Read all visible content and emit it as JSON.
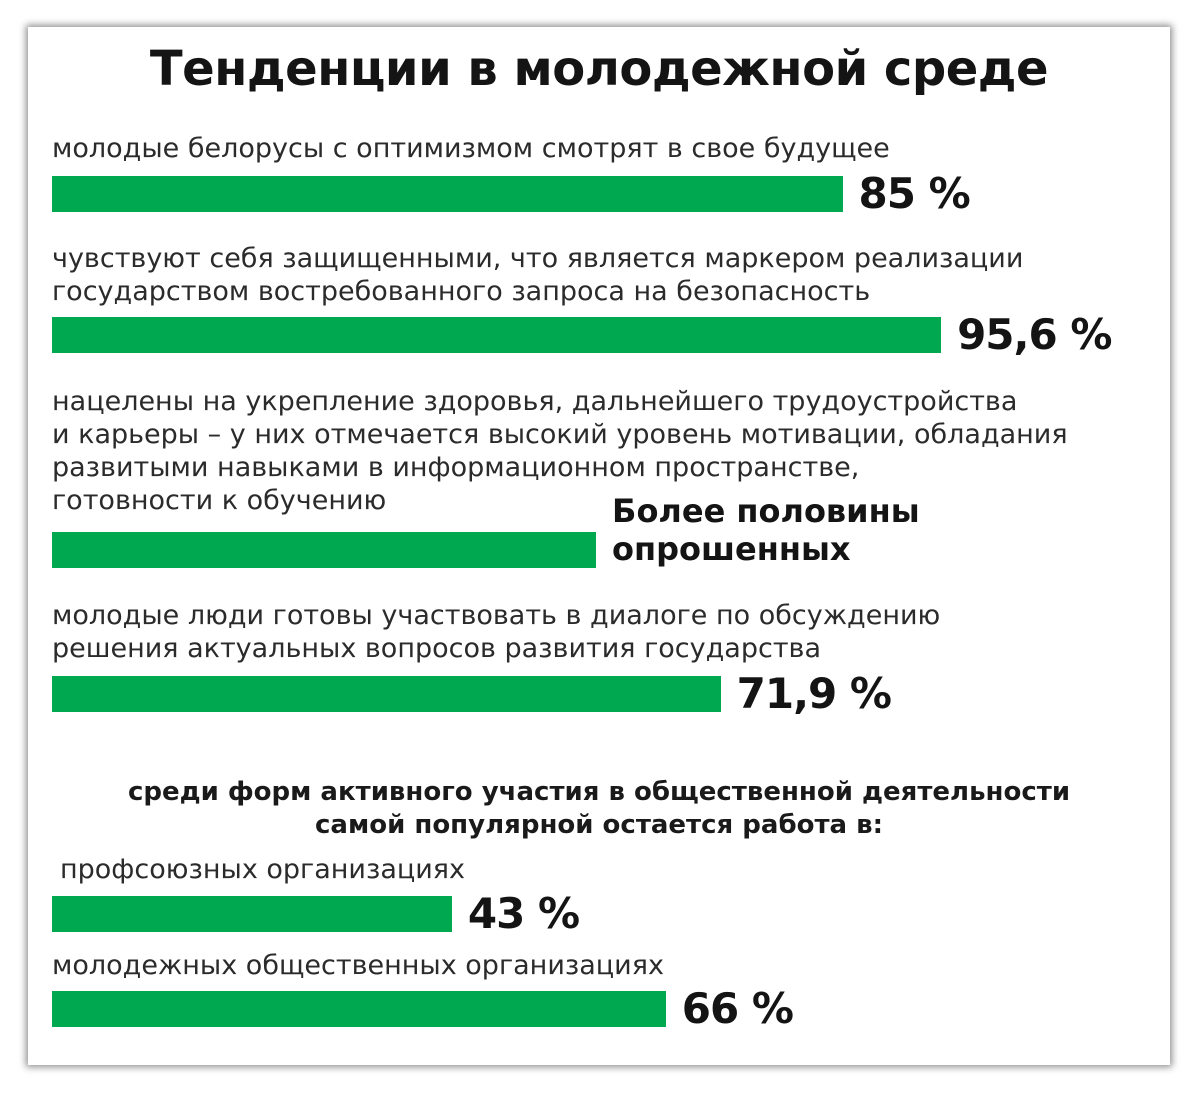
{
  "chart_data": {
    "type": "bar",
    "title": "Тенденции в молодежной среде",
    "subheading": "среди форм активного участия в общественной деятельности\nсамой популярной остается работа в:",
    "bar_color": "#00a850",
    "xlim": [
      0,
      100
    ],
    "items": [
      {
        "label": "молодые белорусы с оптимизмом смотрят в свое будущее",
        "value": 85,
        "value_label": "85 %"
      },
      {
        "label": "чувствуют себя защищенными, что является маркером реализации\nгосударством востребованного запроса на безопасность",
        "value": 95.6,
        "value_label": "95,6 %"
      },
      {
        "label": "нацелены на укрепление здоровья, дальнейшего трудоустройства\nи карьеры – у них отмечается высокий уровень мотивации, обладания\nразвитыми навыками в информационном пространстве,\nготовности к обучению",
        "value": 58.5,
        "value_label": "Более половины\nопрошенных"
      },
      {
        "label": "молодые люди готовы участвовать в диалоге по обсуждению\nрешения актуальных вопросов развития государства",
        "value": 71.9,
        "value_label": "71,9 %"
      },
      {
        "label": "профсоюзных организациях",
        "value": 43,
        "value_label": "43 %"
      },
      {
        "label": "молодежных общественных организациях",
        "value": 66,
        "value_label": "66 %"
      }
    ]
  }
}
